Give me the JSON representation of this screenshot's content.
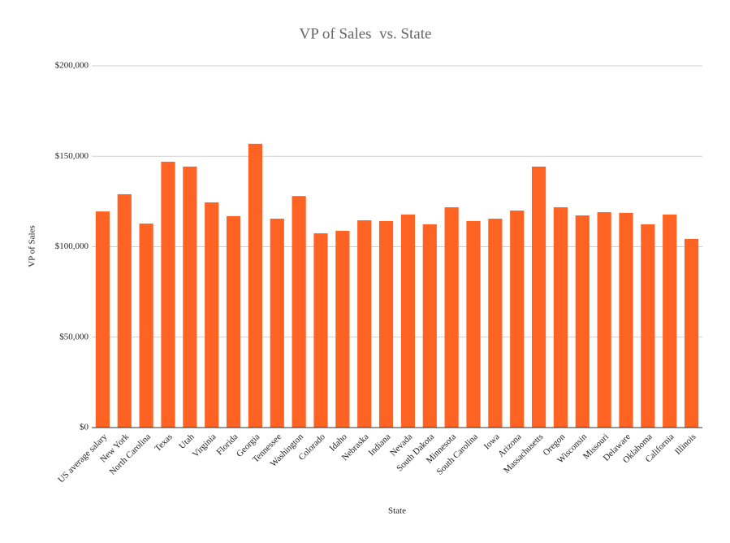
{
  "chart_data": {
    "type": "bar",
    "title": "VP of Sales  vs. State",
    "x_label": "State",
    "y_label": "VP of Sales",
    "categories": [
      "US average salary",
      "New York",
      "North Carolina",
      "Texas",
      "Utah",
      "Virginia",
      "Florida",
      "Georgia",
      "Tennessee",
      "Washington",
      "Colorado",
      "Idaho",
      "Nebraska",
      "Indiana",
      "Nevada",
      "South Dakota",
      "Minnesota",
      "South Carolina",
      "Iowa",
      "Arizona",
      "Massachusetts",
      "Oregon",
      "Wisconsin",
      "Missouri",
      "Delaware",
      "Oklahoma",
      "California",
      "Illinois"
    ],
    "values": [
      119500,
      129000,
      112800,
      147000,
      144300,
      124500,
      116900,
      156900,
      115500,
      128000,
      107400,
      108800,
      114600,
      114200,
      117800,
      112400,
      121800,
      114200,
      115500,
      120000,
      144300,
      121800,
      117300,
      119100,
      118700,
      112400,
      117800,
      104300
    ],
    "color": "#ff6324",
    "ylim": [
      0,
      200000
    ],
    "yticks": [
      {
        "value": 0,
        "label": "$0"
      },
      {
        "value": 50000,
        "label": "$50,000"
      },
      {
        "value": 100000,
        "label": "$100,000"
      },
      {
        "value": 150000,
        "label": "$150,000"
      },
      {
        "value": 200000,
        "label": "$200,000"
      }
    ],
    "grid": true
  }
}
